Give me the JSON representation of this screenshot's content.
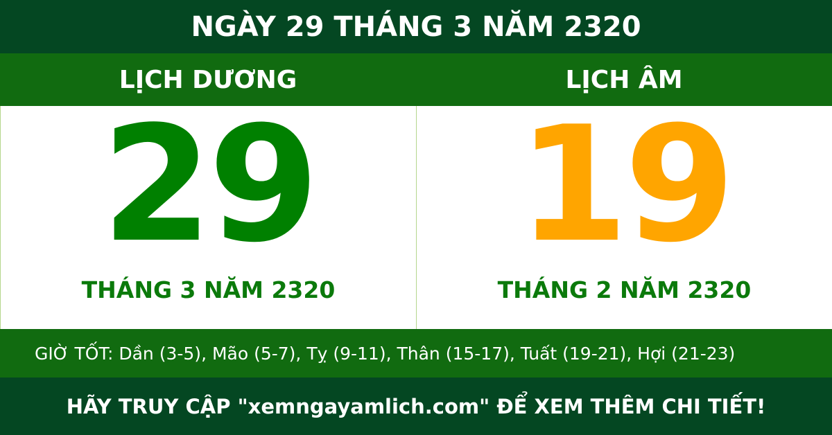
{
  "title": "NGÀY 29 THÁNG 3 NĂM 2320",
  "solar": {
    "heading": "LỊCH DƯƠNG",
    "day": "29",
    "month_year": "THÁNG 3 NĂM 2320",
    "color": "#008000"
  },
  "lunar": {
    "heading": "LỊCH ÂM",
    "day": "19",
    "month_year": "THÁNG 2 NĂM 2320",
    "color": "#FFA500"
  },
  "good_hours": "GIỜ TỐT: Dần (3-5), Mão (5-7), Tỵ (9-11), Thân (15-17), Tuất (19-21), Hợi (21-23)",
  "footer": "HÃY TRUY CẬP \"xemngayamlich.com\" ĐỂ XEM THÊM CHI TIẾT!",
  "colors": {
    "dark_green": "#044722",
    "green": "#116b10"
  }
}
